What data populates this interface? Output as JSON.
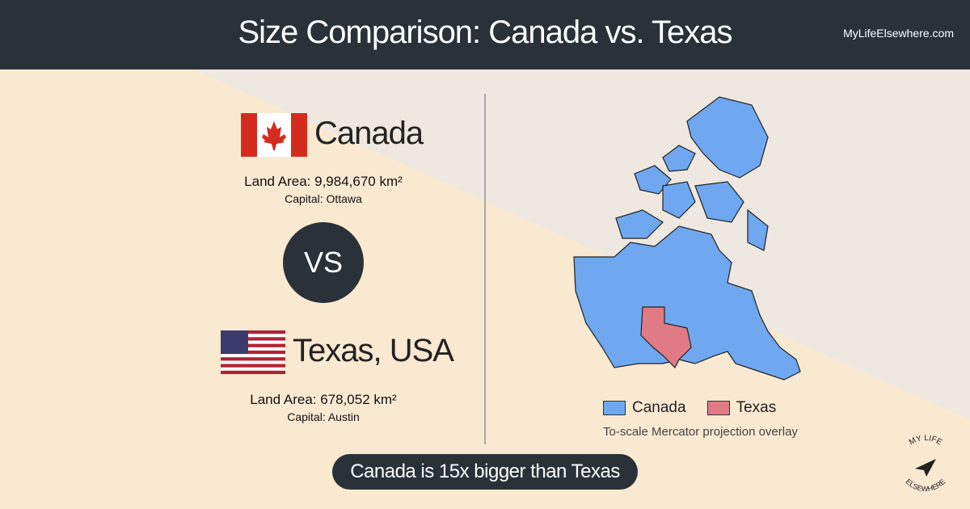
{
  "header": {
    "title": "Size Comparison: Canada vs. Texas",
    "site": "MyLifeElsewhere.com"
  },
  "countries": [
    {
      "name": "Canada",
      "land_area": "Land Area: 9,984,670 km²",
      "capital": "Capital: Ottawa"
    },
    {
      "name": "Texas, USA",
      "land_area": "Land Area: 678,052 km²",
      "capital": "Capital: Austin"
    }
  ],
  "vs": "VS",
  "map": {
    "legend": [
      "Canada",
      "Texas"
    ],
    "note": "To-scale Mercator projection overlay"
  },
  "summary": "Canada is 15x bigger than Texas",
  "logo": {
    "top": "MY LIFE",
    "bottom": "ELSEWHERE"
  }
}
